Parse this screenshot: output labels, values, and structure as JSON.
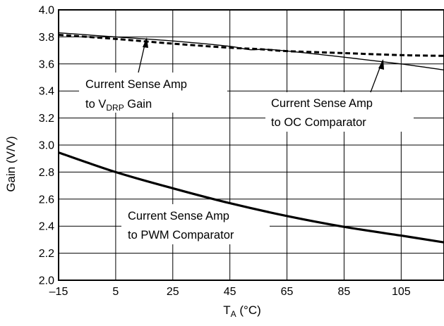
{
  "chart_data": {
    "type": "line",
    "xlabel": {
      "main": "T",
      "sub": "A",
      "unit": " (°C)"
    },
    "ylabel": "Gain (V/V)",
    "xlim": [
      -15,
      120
    ],
    "ylim": [
      2.0,
      4.0
    ],
    "xticks": [
      -15,
      5,
      25,
      45,
      65,
      85,
      105
    ],
    "xtick_labels": [
      "–15",
      "5",
      "25",
      "45",
      "65",
      "85",
      "105"
    ],
    "yticks": [
      2.0,
      2.2,
      2.4,
      2.6,
      2.8,
      3.0,
      3.2,
      3.4,
      3.6,
      3.8,
      4.0
    ],
    "ytick_labels": [
      "2.0",
      "2.2",
      "2.4",
      "2.6",
      "2.8",
      "3.0",
      "3.2",
      "3.4",
      "3.6",
      "3.8",
      "4.0"
    ],
    "grid": true,
    "series": [
      {
        "key": "vdrp",
        "style": "solid-thin",
        "points": [
          [
            -15,
            3.83
          ],
          [
            5,
            3.8
          ],
          [
            25,
            3.77
          ],
          [
            45,
            3.73
          ],
          [
            52,
            3.705
          ],
          [
            60,
            3.705
          ],
          [
            85,
            3.65
          ],
          [
            105,
            3.6
          ],
          [
            120,
            3.555
          ]
        ]
      },
      {
        "key": "oc",
        "style": "dashed",
        "points": [
          [
            -15,
            3.815
          ],
          [
            5,
            3.785
          ],
          [
            25,
            3.75
          ],
          [
            45,
            3.72
          ],
          [
            55,
            3.71
          ],
          [
            65,
            3.695
          ],
          [
            85,
            3.68
          ],
          [
            105,
            3.665
          ],
          [
            120,
            3.66
          ]
        ]
      },
      {
        "key": "pwm",
        "style": "solid-thick",
        "points": [
          [
            -15,
            2.945
          ],
          [
            5,
            2.8
          ],
          [
            25,
            2.68
          ],
          [
            45,
            2.57
          ],
          [
            65,
            2.475
          ],
          [
            85,
            2.395
          ],
          [
            105,
            2.33
          ],
          [
            120,
            2.28
          ]
        ]
      }
    ],
    "annotations": [
      {
        "key": "vdrp",
        "line1": "Current Sense Amp",
        "line2_main": "to V",
        "line2_sub": "DRP",
        "line2_tail": " Gain"
      },
      {
        "key": "oc",
        "line1": "Current Sense Amp",
        "line2_main": "to OC Comparator",
        "line2_sub": "",
        "line2_tail": ""
      },
      {
        "key": "pwm",
        "line1": "Current Sense Amp",
        "line2_main": "to PWM Comparator",
        "line2_sub": "",
        "line2_tail": ""
      }
    ]
  }
}
